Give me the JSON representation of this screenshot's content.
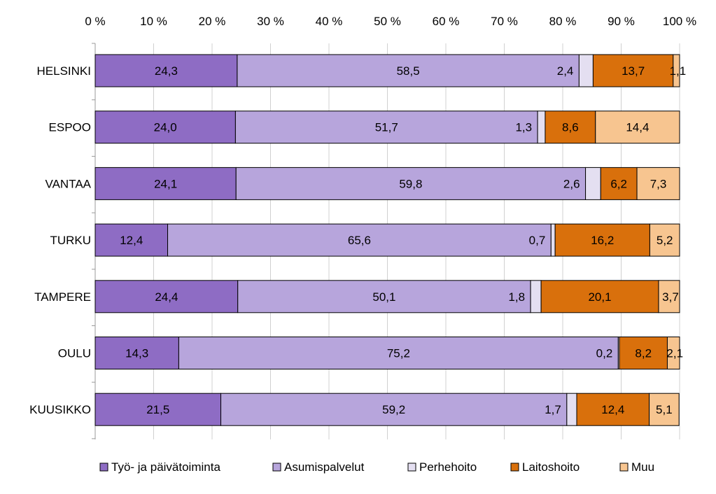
{
  "chart_data": {
    "type": "bar",
    "orientation": "horizontal",
    "stacked": "percent",
    "title": "",
    "xlabel": "",
    "ylabel": "",
    "xlim": [
      0,
      100
    ],
    "x_ticks": [
      0,
      10,
      20,
      30,
      40,
      50,
      60,
      70,
      80,
      90,
      100
    ],
    "x_tick_labels": [
      "0 %",
      "10 %",
      "20 %",
      "30 %",
      "40 %",
      "50 %",
      "60 %",
      "70 %",
      "80 %",
      "90 %",
      "100 %"
    ],
    "x_axis_position": "top",
    "grid": true,
    "legend_position": "bottom",
    "categories": [
      "HELSINKI",
      "ESPOO",
      "VANTAA",
      "TURKU",
      "TAMPERE",
      "OULU",
      "KUUSIKKO"
    ],
    "series": [
      {
        "name": "Työ- ja päivätoiminta",
        "color": "#8e6cc4",
        "values": [
          24.3,
          24.0,
          24.1,
          12.4,
          24.4,
          14.3,
          21.5
        ],
        "labels": [
          "24,3",
          "24,0",
          "24,1",
          "12,4",
          "24,4",
          "14,3",
          "21,5"
        ]
      },
      {
        "name": "Asumispalvelut",
        "color": "#b7a5dc",
        "values": [
          58.5,
          51.7,
          59.8,
          65.6,
          50.1,
          75.2,
          59.2
        ],
        "labels": [
          "58,5",
          "51,7",
          "59,8",
          "65,6",
          "50,1",
          "75,2",
          "59,2"
        ]
      },
      {
        "name": "Perhehoito",
        "color": "#e4dff1",
        "values": [
          2.4,
          1.3,
          2.6,
          0.7,
          1.8,
          0.2,
          1.7
        ],
        "labels": [
          "2,4",
          "1,3",
          "2,6",
          "0,7",
          "1,8",
          "0,2",
          "1,7"
        ]
      },
      {
        "name": "Laitoshoito",
        "color": "#d9700c",
        "values": [
          13.7,
          8.6,
          6.2,
          16.2,
          20.1,
          8.2,
          12.4
        ],
        "labels": [
          "13,7",
          "8,6",
          "6,2",
          "16,2",
          "20,1",
          "8,2",
          "12,4"
        ]
      },
      {
        "name": "Muu",
        "color": "#f7c590",
        "values": [
          1.1,
          14.4,
          7.3,
          5.2,
          3.7,
          2.1,
          5.1
        ],
        "labels": [
          "1,1",
          "14,4",
          "7,3",
          "5,2",
          "3,7",
          "2,1",
          "5,1"
        ]
      }
    ]
  }
}
